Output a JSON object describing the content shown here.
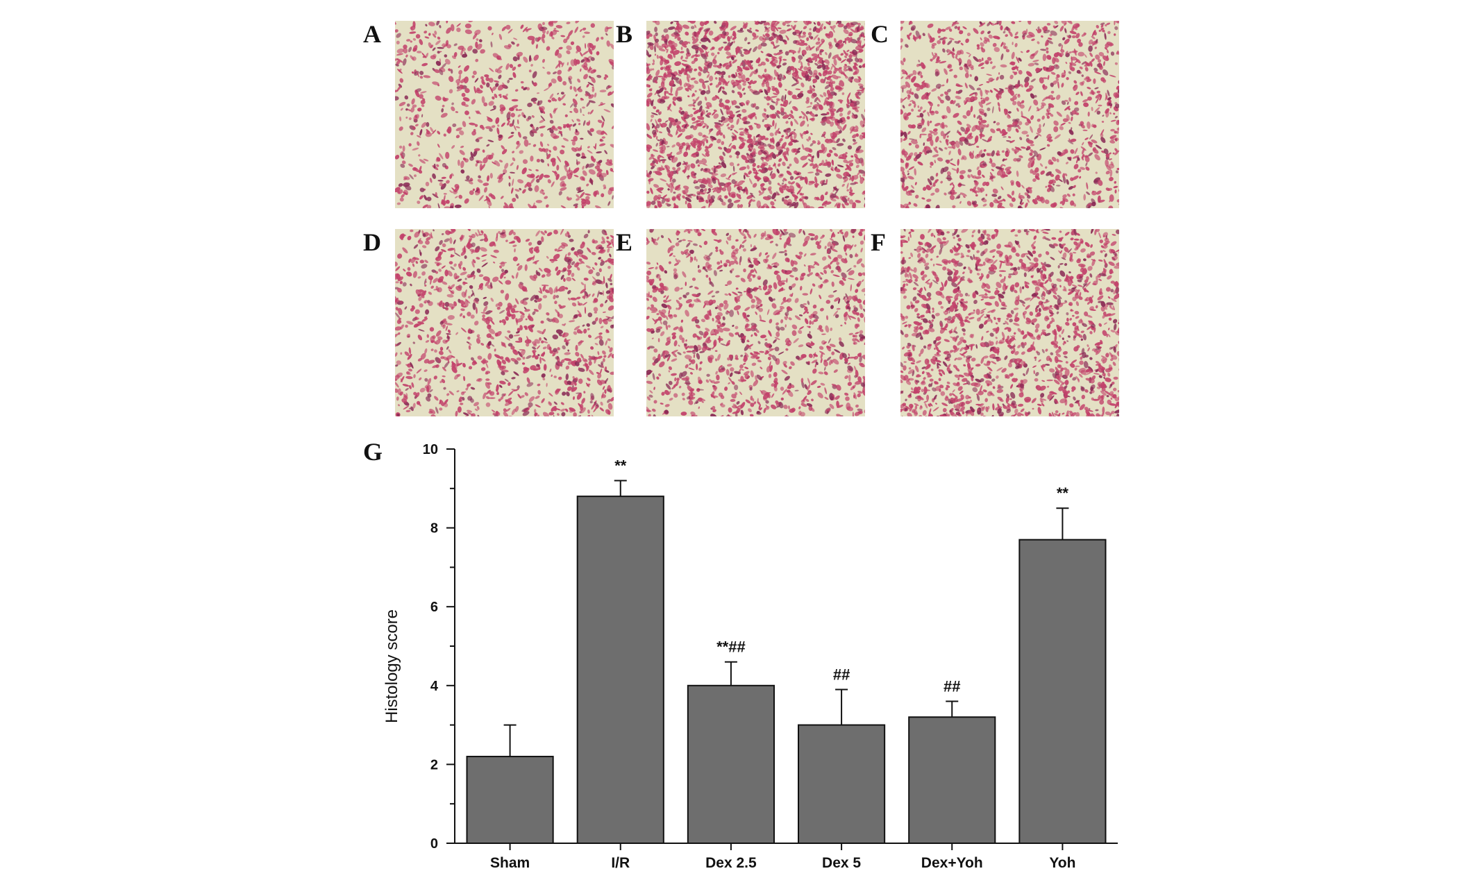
{
  "panels": {
    "labels": [
      "A",
      "B",
      "C",
      "D",
      "E",
      "F",
      "G"
    ]
  },
  "micrographs": [
    {
      "panel": "A",
      "tissue_density": 0.25
    },
    {
      "panel": "B",
      "tissue_density": 0.78
    },
    {
      "panel": "C",
      "tissue_density": 0.42
    },
    {
      "panel": "D",
      "tissue_density": 0.38
    },
    {
      "panel": "E",
      "tissue_density": 0.4
    },
    {
      "panel": "F",
      "tissue_density": 0.62
    }
  ],
  "colors": {
    "bar": "#6e6e6e",
    "bar_stroke": "#111111",
    "stain": "#c2416a",
    "stain_dark": "#8a2a55",
    "background_tissue": "#e4e0c4"
  },
  "chart_data": {
    "type": "bar",
    "categories": [
      "Sham",
      "I/R",
      "Dex 2.5",
      "Dex 5",
      "Dex+Yoh",
      "Yoh"
    ],
    "values": [
      2.2,
      8.8,
      4.0,
      3.0,
      3.2,
      7.7
    ],
    "errors": [
      0.8,
      0.4,
      0.6,
      0.9,
      0.4,
      0.8
    ],
    "annotations": [
      "",
      "**",
      "**##",
      "##",
      "##",
      "**"
    ],
    "title": "",
    "xlabel": "",
    "ylabel": "Histology score",
    "ylim": [
      0,
      10
    ],
    "yticks": [
      0,
      2,
      4,
      6,
      8,
      10
    ],
    "grid": false,
    "legend": "none"
  }
}
